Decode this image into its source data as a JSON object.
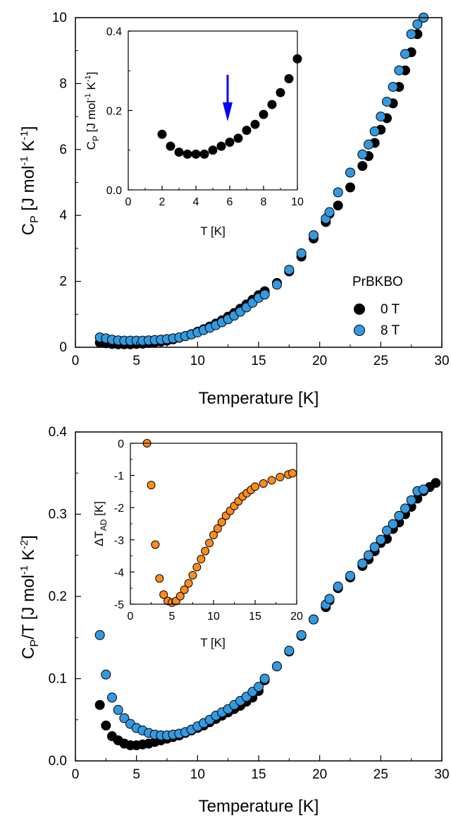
{
  "colors": {
    "field_0T": "#000000",
    "field_8T": "#3399e0",
    "adiabatic": "#ff8c1a",
    "arrow": "#0000ff"
  },
  "chart_data": [
    {
      "id": "top-main",
      "type": "scatter",
      "xlabel": "Temperature [K]",
      "ylabel": "C_P [J mol^-1 K^-1]",
      "ylabel_parts": {
        "main": "C",
        "sub": "P",
        "rest": " [J mol",
        "sup1": "-1",
        "mid": " K",
        "sup2": "-1",
        "end": "]"
      },
      "xlim": [
        0,
        30
      ],
      "ylim": [
        0,
        10
      ],
      "xticks": [
        "0",
        "5",
        "10",
        "15",
        "20",
        "25",
        "30"
      ],
      "yticks": [
        "0",
        "2",
        "4",
        "6",
        "8",
        "10"
      ],
      "legend": {
        "title": "PrBKBO",
        "placement": "lower-right",
        "entries": [
          "0 T",
          "8 T"
        ]
      },
      "series": [
        {
          "name": "0 T",
          "x": [
            2.0,
            2.5,
            3.0,
            3.5,
            4.0,
            4.5,
            5.0,
            5.5,
            6.0,
            6.5,
            7.0,
            7.5,
            8.0,
            8.5,
            9.0,
            9.5,
            10.0,
            10.5,
            11.0,
            11.5,
            12.0,
            12.5,
            13.0,
            13.5,
            14.0,
            14.5,
            15.0,
            15.5,
            16.5,
            17.5,
            18.5,
            19.5,
            20.5,
            20.8,
            21.5,
            22.5,
            23.5,
            24.0,
            24.5,
            25.0,
            25.5,
            26.0,
            26.5,
            27.0,
            27.5,
            28.0,
            28.5
          ],
          "y": [
            0.14,
            0.12,
            0.1,
            0.09,
            0.09,
            0.09,
            0.1,
            0.11,
            0.13,
            0.15,
            0.17,
            0.2,
            0.24,
            0.29,
            0.34,
            0.4,
            0.47,
            0.55,
            0.63,
            0.72,
            0.82,
            0.93,
            1.04,
            1.17,
            1.3,
            1.44,
            1.58,
            1.7,
            1.95,
            2.3,
            2.75,
            3.3,
            3.8,
            4.05,
            4.3,
            4.85,
            5.5,
            5.8,
            6.2,
            6.6,
            6.95,
            7.4,
            7.9,
            8.4,
            8.95,
            9.5,
            10.0
          ]
        },
        {
          "name": "8 T",
          "x": [
            2.0,
            2.5,
            3.0,
            3.5,
            4.0,
            4.5,
            5.0,
            5.5,
            6.0,
            6.5,
            7.0,
            7.5,
            8.0,
            8.5,
            9.0,
            9.5,
            10.0,
            10.5,
            11.0,
            11.5,
            12.0,
            12.5,
            13.0,
            13.5,
            14.0,
            14.5,
            15.0,
            15.5,
            16.5,
            17.5,
            18.5,
            19.5,
            20.5,
            20.8,
            21.5,
            22.5,
            23.5,
            24.0,
            24.5,
            25.0,
            25.5,
            26.0,
            26.5,
            27.0,
            27.5,
            28.0,
            28.5
          ],
          "y": [
            0.3,
            0.27,
            0.23,
            0.21,
            0.2,
            0.2,
            0.2,
            0.2,
            0.21,
            0.22,
            0.23,
            0.25,
            0.27,
            0.3,
            0.34,
            0.39,
            0.45,
            0.52,
            0.59,
            0.67,
            0.76,
            0.85,
            0.96,
            1.08,
            1.21,
            1.35,
            1.5,
            1.6,
            1.9,
            2.35,
            2.85,
            3.4,
            3.9,
            4.1,
            4.7,
            5.3,
            5.85,
            6.15,
            6.55,
            7.0,
            7.45,
            7.9,
            8.4,
            8.9,
            9.5,
            9.8,
            10.0
          ]
        }
      ]
    },
    {
      "id": "top-inset",
      "type": "scatter",
      "xlabel": "T [K]",
      "ylabel": "C_P [J mol^-1 K^-1]",
      "ylabel_parts": {
        "main": "C",
        "sub": "P",
        "rest": " [J mol",
        "sup1": "-1",
        "mid": " K",
        "sup2": "-1",
        "end": "]"
      },
      "xlim": [
        0,
        10
      ],
      "ylim": [
        0,
        0.4
      ],
      "xticks": [
        "0",
        "2",
        "4",
        "6",
        "8",
        "10"
      ],
      "yticks": [
        "0.0",
        "0.2",
        "0.4"
      ],
      "arrow_at_x": 5.8,
      "series": [
        {
          "name": "0 T",
          "x": [
            2.0,
            2.5,
            3.0,
            3.5,
            4.0,
            4.5,
            5.0,
            5.5,
            6.0,
            6.5,
            7.0,
            7.5,
            8.0,
            8.5,
            9.0,
            9.5,
            10.0
          ],
          "y": [
            0.14,
            0.11,
            0.095,
            0.09,
            0.09,
            0.09,
            0.1,
            0.11,
            0.12,
            0.13,
            0.15,
            0.165,
            0.19,
            0.215,
            0.245,
            0.28,
            0.33
          ]
        }
      ]
    },
    {
      "id": "bottom-main",
      "type": "scatter",
      "xlabel": "Temperature [K]",
      "ylabel": "C_P/T [J mol^-1 K^-2]",
      "ylabel_parts": {
        "main": "C",
        "sub": "P",
        "rest": "/T [J mol",
        "sup1": "-1",
        "mid": " K",
        "sup2": "-2",
        "end": "]"
      },
      "xlim": [
        0,
        30
      ],
      "ylim": [
        0,
        0.4
      ],
      "xticks": [
        "0",
        "5",
        "10",
        "15",
        "20",
        "25",
        "30"
      ],
      "yticks": [
        "0.0",
        "0.1",
        "0.2",
        "0.3",
        "0.4"
      ],
      "series": [
        {
          "name": "0 T",
          "x": [
            2.0,
            2.5,
            3.0,
            3.5,
            4.0,
            4.5,
            5.0,
            5.5,
            6.0,
            6.5,
            7.0,
            7.5,
            8.0,
            8.5,
            9.0,
            9.5,
            10.0,
            10.5,
            11.0,
            11.5,
            12.0,
            12.5,
            13.0,
            13.5,
            14.0,
            14.5,
            15.0,
            15.5,
            16.5,
            17.5,
            18.5,
            19.5,
            20.5,
            20.8,
            21.5,
            22.5,
            23.5,
            24.0,
            24.5,
            25.0,
            25.5,
            26.0,
            26.5,
            27.0,
            27.5,
            28.0,
            28.5,
            29.0,
            29.5
          ],
          "y": [
            0.068,
            0.043,
            0.03,
            0.025,
            0.021,
            0.019,
            0.019,
            0.02,
            0.021,
            0.023,
            0.025,
            0.027,
            0.029,
            0.031,
            0.034,
            0.037,
            0.04,
            0.043,
            0.047,
            0.051,
            0.055,
            0.059,
            0.063,
            0.067,
            0.072,
            0.077,
            0.085,
            0.098,
            0.115,
            0.133,
            0.152,
            0.172,
            0.187,
            0.195,
            0.21,
            0.223,
            0.237,
            0.245,
            0.255,
            0.265,
            0.27,
            0.282,
            0.29,
            0.3,
            0.309,
            0.319,
            0.328,
            0.333,
            0.338
          ]
        },
        {
          "name": "8 T",
          "x": [
            2.0,
            2.5,
            3.0,
            3.5,
            4.0,
            4.5,
            5.0,
            5.5,
            6.0,
            6.5,
            7.0,
            7.5,
            8.0,
            8.5,
            9.0,
            9.5,
            10.0,
            10.5,
            11.0,
            11.5,
            12.0,
            12.5,
            13.0,
            13.5,
            14.0,
            14.5,
            15.0,
            15.5,
            16.5,
            17.5,
            18.5,
            19.5,
            20.5,
            20.8,
            21.5,
            22.5,
            23.5,
            24.0,
            24.5,
            25.0,
            25.5,
            26.0,
            26.5,
            27.0,
            27.5,
            28.0,
            28.5
          ],
          "y": [
            0.153,
            0.105,
            0.077,
            0.062,
            0.052,
            0.045,
            0.04,
            0.037,
            0.034,
            0.032,
            0.031,
            0.031,
            0.032,
            0.033,
            0.035,
            0.038,
            0.042,
            0.046,
            0.05,
            0.055,
            0.059,
            0.063,
            0.068,
            0.073,
            0.078,
            0.084,
            0.09,
            0.1,
            0.115,
            0.134,
            0.153,
            0.172,
            0.19,
            0.197,
            0.212,
            0.225,
            0.24,
            0.25,
            0.26,
            0.269,
            0.28,
            0.288,
            0.298,
            0.307,
            0.317,
            0.328,
            0.33
          ]
        }
      ]
    },
    {
      "id": "bottom-inset",
      "type": "scatter",
      "xlabel": "T [K]",
      "ylabel": "ΔT_AD [K]",
      "ylabel_parts": {
        "main": "ΔT",
        "sub": "AD",
        "rest": " [K]",
        "sup1": "",
        "mid": "",
        "sup2": "",
        "end": ""
      },
      "xlim": [
        0,
        20
      ],
      "ylim": [
        -5,
        0
      ],
      "xticks": [
        "0",
        "5",
        "10",
        "15",
        "20"
      ],
      "yticks": [
        "-5",
        "-4",
        "-3",
        "-2",
        "-1",
        "0"
      ],
      "series": [
        {
          "x": [
            2.0,
            2.5,
            3.0,
            3.5,
            4.0,
            4.5,
            5.0,
            5.5,
            6.0,
            6.5,
            7.0,
            7.5,
            8.0,
            8.5,
            9.0,
            9.5,
            10.0,
            10.5,
            11.0,
            11.5,
            12.0,
            12.5,
            13.0,
            13.5,
            14.0,
            14.5,
            15.0,
            16.0,
            17.0,
            18.0,
            19.0,
            19.5
          ],
          "y": [
            0.0,
            -1.3,
            -3.15,
            -4.2,
            -4.7,
            -4.9,
            -4.95,
            -4.9,
            -4.75,
            -4.55,
            -4.35,
            -4.1,
            -3.85,
            -3.6,
            -3.35,
            -3.1,
            -2.85,
            -2.65,
            -2.45,
            -2.25,
            -2.1,
            -1.95,
            -1.8,
            -1.65,
            -1.55,
            -1.45,
            -1.35,
            -1.25,
            -1.15,
            -1.05,
            -0.97,
            -0.93
          ]
        }
      ]
    }
  ]
}
